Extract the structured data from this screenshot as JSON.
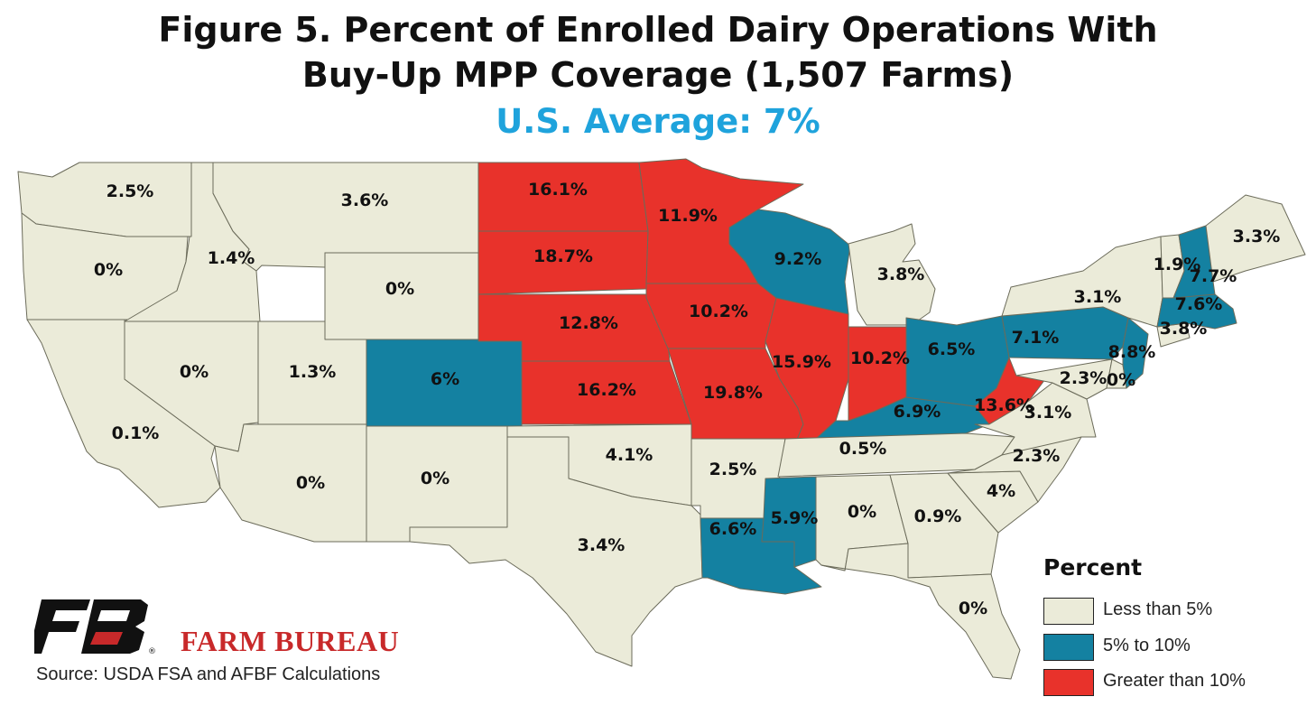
{
  "title_line1": "Figure 5. Percent of Enrolled Dairy Operations With",
  "title_line2": "Buy-Up MPP Coverage (1,507 Farms)",
  "subtitle": "U.S. Average: 7%",
  "legend": {
    "title": "Percent",
    "items": [
      {
        "label": "Less than 5%",
        "color": "#ebebd9"
      },
      {
        "label": "5% to 10%",
        "color": "#1481a1"
      },
      {
        "label": "Greater than 10%",
        "color": "#e8322b"
      }
    ]
  },
  "brand": "FARM BUREAU",
  "source": "Source: USDA FSA and AFBF Calculations",
  "colors": {
    "low": "#ebebd9",
    "mid": "#1481a1",
    "high": "#e8322b",
    "border": "#6b6b5a"
  },
  "states": [
    {
      "state": "WA",
      "label": "2.5%",
      "category": "low"
    },
    {
      "state": "OR",
      "label": "0%",
      "category": "low"
    },
    {
      "state": "CA",
      "label": "0.1%",
      "category": "low"
    },
    {
      "state": "ID",
      "label": "1.4%",
      "category": "low"
    },
    {
      "state": "NV",
      "label": "0%",
      "category": "low"
    },
    {
      "state": "MT",
      "label": "3.6%",
      "category": "low"
    },
    {
      "state": "WY",
      "label": "0%",
      "category": "low"
    },
    {
      "state": "UT",
      "label": "1.3%",
      "category": "low"
    },
    {
      "state": "AZ",
      "label": "0%",
      "category": "low"
    },
    {
      "state": "CO",
      "label": "6%",
      "category": "mid"
    },
    {
      "state": "NM",
      "label": "0%",
      "category": "low"
    },
    {
      "state": "ND",
      "label": "16.1%",
      "category": "high"
    },
    {
      "state": "SD",
      "label": "18.7%",
      "category": "high"
    },
    {
      "state": "NE",
      "label": "12.8%",
      "category": "high"
    },
    {
      "state": "KS",
      "label": "16.2%",
      "category": "high"
    },
    {
      "state": "OK",
      "label": "4.1%",
      "category": "low"
    },
    {
      "state": "TX",
      "label": "3.4%",
      "category": "low"
    },
    {
      "state": "MN",
      "label": "11.9%",
      "category": "high"
    },
    {
      "state": "IA",
      "label": "10.2%",
      "category": "high"
    },
    {
      "state": "MO",
      "label": "19.8%",
      "category": "high"
    },
    {
      "state": "AR",
      "label": "2.5%",
      "category": "low"
    },
    {
      "state": "LA",
      "label": "6.6%",
      "category": "mid"
    },
    {
      "state": "WI",
      "label": "9.2%",
      "category": "mid"
    },
    {
      "state": "IL",
      "label": "15.9%",
      "category": "high"
    },
    {
      "state": "MS",
      "label": "5.9%",
      "category": "mid"
    },
    {
      "state": "MI",
      "label": "3.8%",
      "category": "low"
    },
    {
      "state": "IN",
      "label": "10.2%",
      "category": "high"
    },
    {
      "state": "KY",
      "label": "6.9%",
      "category": "mid"
    },
    {
      "state": "TN",
      "label": "0.5%",
      "category": "low"
    },
    {
      "state": "AL",
      "label": "0%",
      "category": "low"
    },
    {
      "state": "OH",
      "label": "6.5%",
      "category": "mid"
    },
    {
      "state": "WV",
      "label": "13.6%",
      "category": "high"
    },
    {
      "state": "GA",
      "label": "0.9%",
      "category": "low"
    },
    {
      "state": "FL",
      "label": "0%",
      "category": "low"
    },
    {
      "state": "SC",
      "label": "4%",
      "category": "low"
    },
    {
      "state": "NC",
      "label": "2.3%",
      "category": "low"
    },
    {
      "state": "VA",
      "label": "3.1%",
      "category": "low"
    },
    {
      "state": "PA",
      "label": "7.1%",
      "category": "mid"
    },
    {
      "state": "NY",
      "label": "3.1%",
      "category": "low"
    },
    {
      "state": "MD",
      "label": "2.3%",
      "category": "low"
    },
    {
      "state": "DE",
      "label": "0%",
      "category": "low"
    },
    {
      "state": "NJ",
      "label": "8.8%",
      "category": "mid"
    },
    {
      "state": "CT",
      "label": "3.8%",
      "category": "low"
    },
    {
      "state": "MA",
      "label": "7.6%",
      "category": "mid"
    },
    {
      "state": "VT",
      "label": "1.9%",
      "category": "low"
    },
    {
      "state": "NH",
      "label": "7.7%",
      "category": "mid"
    },
    {
      "state": "ME",
      "label": "3.3%",
      "category": "low"
    }
  ]
}
